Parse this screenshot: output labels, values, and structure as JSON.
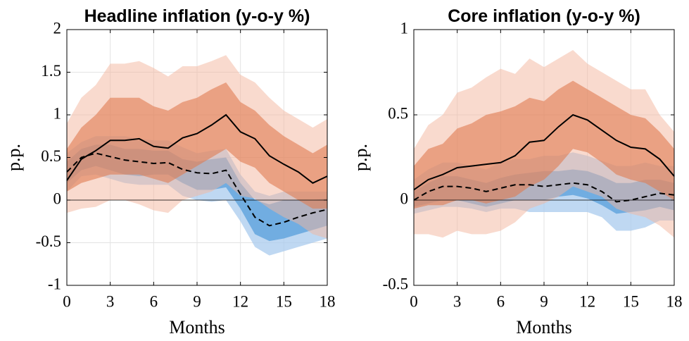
{
  "chart_data": [
    {
      "type": "band-line",
      "title": "Headline inflation (y-o-y %)",
      "ylabel": "p.p.",
      "xlabel": "Months",
      "x": [
        0,
        1,
        2,
        3,
        4,
        5,
        6,
        7,
        8,
        9,
        10,
        11,
        12,
        13,
        14,
        15,
        16,
        17,
        18
      ],
      "xlim": [
        0,
        18
      ],
      "xticks": [
        0,
        3,
        6,
        9,
        12,
        15,
        18
      ],
      "ylim": [
        -1,
        2
      ],
      "yticks": [
        -1,
        -0.5,
        0,
        0.5,
        1,
        1.5,
        2
      ],
      "grid": true,
      "hline": 0,
      "bands": [
        {
          "color": "#a9cbee",
          "opacity": 0.75,
          "upper": [
            0.55,
            0.68,
            0.75,
            0.75,
            0.75,
            0.72,
            0.7,
            0.7,
            0.62,
            0.55,
            0.58,
            0.6,
            0.3,
            0.1,
            0.05,
            0.1,
            0.1,
            0.1,
            0.1
          ],
          "lower": [
            0.1,
            0.28,
            0.3,
            0.25,
            0.2,
            0.18,
            0.18,
            0.18,
            0.05,
            0.0,
            -0.02,
            0.0,
            -0.25,
            -0.55,
            -0.65,
            -0.6,
            -0.55,
            -0.5,
            -0.45
          ]
        },
        {
          "color": "#5ea2dc",
          "opacity": 0.8,
          "upper": [
            0.45,
            0.6,
            0.65,
            0.65,
            0.6,
            0.6,
            0.58,
            0.58,
            0.48,
            0.45,
            0.48,
            0.5,
            0.2,
            0.0,
            -0.05,
            0.0,
            0.0,
            0.0,
            0.02
          ],
          "lower": [
            0.2,
            0.35,
            0.4,
            0.35,
            0.3,
            0.28,
            0.3,
            0.3,
            0.2,
            0.12,
            0.12,
            0.15,
            -0.1,
            -0.4,
            -0.48,
            -0.45,
            -0.4,
            -0.35,
            -0.3
          ]
        },
        {
          "color": "#f3b59d",
          "opacity": 0.5,
          "upper": [
            0.9,
            1.2,
            1.35,
            1.6,
            1.6,
            1.63,
            1.55,
            1.45,
            1.57,
            1.57,
            1.63,
            1.7,
            1.47,
            1.38,
            1.2,
            1.05,
            0.95,
            0.85,
            0.95
          ],
          "lower": [
            -0.15,
            -0.1,
            -0.08,
            0.0,
            0.0,
            -0.05,
            -0.12,
            -0.15,
            0.0,
            0.05,
            0.1,
            0.2,
            0.05,
            0.02,
            -0.1,
            -0.2,
            -0.28,
            -0.4,
            -0.45
          ]
        },
        {
          "color": "#e07b52",
          "opacity": 0.6,
          "upper": [
            0.6,
            0.85,
            1.0,
            1.2,
            1.2,
            1.2,
            1.1,
            1.05,
            1.15,
            1.2,
            1.3,
            1.38,
            1.15,
            1.05,
            0.88,
            0.75,
            0.65,
            0.55,
            0.65
          ],
          "lower": [
            0.1,
            0.2,
            0.25,
            0.3,
            0.3,
            0.3,
            0.25,
            0.2,
            0.3,
            0.4,
            0.5,
            0.6,
            0.45,
            0.38,
            0.2,
            0.1,
            0.0,
            -0.1,
            -0.1
          ]
        }
      ],
      "lines": [
        {
          "color": "#000000",
          "dashed": false,
          "values": [
            0.23,
            0.48,
            0.58,
            0.7,
            0.7,
            0.72,
            0.63,
            0.61,
            0.73,
            0.78,
            0.88,
            1.0,
            0.8,
            0.72,
            0.52,
            0.42,
            0.33,
            0.2,
            0.28
          ]
        },
        {
          "color": "#000000",
          "dashed": true,
          "values": [
            0.33,
            0.5,
            0.55,
            0.51,
            0.47,
            0.45,
            0.43,
            0.44,
            0.36,
            0.32,
            0.31,
            0.35,
            0.07,
            -0.2,
            -0.3,
            -0.26,
            -0.2,
            -0.15,
            -0.11
          ]
        }
      ]
    },
    {
      "type": "band-line",
      "title": "Core inflation (y-o-y %)",
      "ylabel": "p.p.",
      "xlabel": "Months",
      "x": [
        0,
        1,
        2,
        3,
        4,
        5,
        6,
        7,
        8,
        9,
        10,
        11,
        12,
        13,
        14,
        15,
        16,
        17,
        18
      ],
      "xlim": [
        0,
        18
      ],
      "xticks": [
        0,
        3,
        6,
        9,
        12,
        15,
        18
      ],
      "ylim": [
        -0.5,
        1
      ],
      "yticks": [
        -0.5,
        0,
        0.5,
        1
      ],
      "grid": true,
      "hline": 0,
      "bands": [
        {
          "color": "#a9cbee",
          "opacity": 0.75,
          "upper": [
            0.12,
            0.18,
            0.22,
            0.22,
            0.2,
            0.18,
            0.22,
            0.24,
            0.24,
            0.26,
            0.26,
            0.28,
            0.26,
            0.23,
            0.2,
            0.2,
            0.22,
            0.2,
            0.2
          ],
          "lower": [
            -0.08,
            -0.06,
            -0.04,
            -0.04,
            -0.05,
            -0.07,
            -0.05,
            -0.05,
            -0.07,
            -0.07,
            -0.07,
            -0.07,
            -0.07,
            -0.1,
            -0.18,
            -0.18,
            -0.16,
            -0.12,
            -0.12
          ]
        },
        {
          "color": "#5ea2dc",
          "opacity": 0.8,
          "upper": [
            0.05,
            0.1,
            0.14,
            0.14,
            0.12,
            0.1,
            0.13,
            0.15,
            0.16,
            0.17,
            0.17,
            0.18,
            0.17,
            0.14,
            0.1,
            0.1,
            0.12,
            0.12,
            0.1
          ],
          "lower": [
            -0.04,
            -0.02,
            0.0,
            0.0,
            -0.02,
            -0.04,
            -0.02,
            0.0,
            0.0,
            0.0,
            0.02,
            0.03,
            0.01,
            -0.03,
            -0.08,
            -0.07,
            -0.06,
            -0.04,
            -0.06
          ]
        },
        {
          "color": "#f3b59d",
          "opacity": 0.5,
          "upper": [
            0.3,
            0.44,
            0.5,
            0.63,
            0.66,
            0.72,
            0.77,
            0.74,
            0.83,
            0.78,
            0.83,
            0.88,
            0.8,
            0.75,
            0.7,
            0.65,
            0.65,
            0.5,
            0.4
          ],
          "lower": [
            -0.2,
            -0.2,
            -0.22,
            -0.18,
            -0.2,
            -0.2,
            -0.18,
            -0.13,
            -0.05,
            -0.02,
            0.02,
            0.08,
            0.05,
            0.02,
            -0.05,
            -0.08,
            -0.1,
            -0.15,
            -0.22
          ]
        },
        {
          "color": "#e07b52",
          "opacity": 0.6,
          "upper": [
            0.2,
            0.3,
            0.33,
            0.42,
            0.45,
            0.5,
            0.52,
            0.55,
            0.6,
            0.58,
            0.65,
            0.7,
            0.65,
            0.6,
            0.55,
            0.5,
            0.48,
            0.4,
            0.3
          ],
          "lower": [
            -0.05,
            -0.03,
            -0.03,
            0.0,
            0.0,
            -0.02,
            0.0,
            0.02,
            0.08,
            0.12,
            0.2,
            0.3,
            0.28,
            0.22,
            0.15,
            0.12,
            0.1,
            0.05,
            0.0
          ]
        }
      ],
      "lines": [
        {
          "color": "#000000",
          "dashed": false,
          "values": [
            0.06,
            0.12,
            0.15,
            0.19,
            0.2,
            0.21,
            0.22,
            0.26,
            0.34,
            0.35,
            0.43,
            0.5,
            0.47,
            0.41,
            0.35,
            0.31,
            0.3,
            0.24,
            0.14
          ]
        },
        {
          "color": "#000000",
          "dashed": true,
          "values": [
            0.0,
            0.05,
            0.08,
            0.08,
            0.07,
            0.05,
            0.07,
            0.09,
            0.09,
            0.08,
            0.09,
            0.1,
            0.09,
            0.05,
            -0.01,
            0.0,
            0.02,
            0.04,
            0.03
          ]
        }
      ]
    }
  ]
}
